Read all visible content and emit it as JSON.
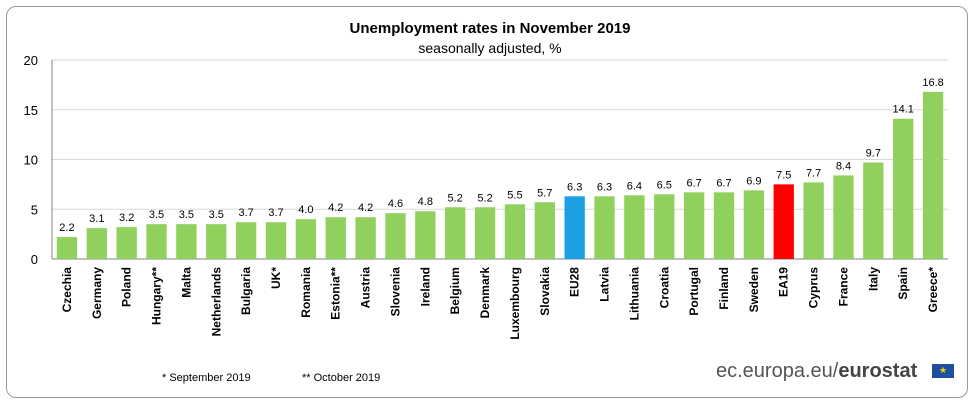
{
  "chart_data": {
    "type": "bar",
    "title": "Unemployment rates in November 2019",
    "subtitle": "seasonally adjusted, %",
    "xlabel": "",
    "ylabel": "",
    "ylim": [
      0,
      20
    ],
    "yticks": [
      "0",
      "5",
      "10",
      "15",
      "20"
    ],
    "categories": [
      "Czechia",
      "Germany",
      "Poland",
      "Hungary**",
      "Malta",
      "Netherlands",
      "Bulgaria",
      "UK*",
      "Romania",
      "Estonia**",
      "Austria",
      "Slovenia",
      "Ireland",
      "Belgium",
      "Denmark",
      "Luxembourg",
      "Slovakia",
      "EU28",
      "Latvia",
      "Lithuania",
      "Croatia",
      "Portugal",
      "Finland",
      "Sweden",
      "EA19",
      "Cyprus",
      "France",
      "Italy",
      "Spain",
      "Greece*"
    ],
    "values": [
      2.2,
      3.1,
      3.2,
      3.5,
      3.5,
      3.5,
      3.7,
      3.7,
      4.0,
      4.2,
      4.2,
      4.6,
      4.8,
      5.2,
      5.2,
      5.5,
      5.7,
      6.3,
      6.3,
      6.4,
      6.5,
      6.7,
      6.7,
      6.9,
      7.5,
      7.7,
      8.4,
      9.7,
      14.1,
      16.8
    ],
    "value_labels": [
      "2.2",
      "3.1",
      "3.2",
      "3.5",
      "3.5",
      "3.5",
      "3.7",
      "3.7",
      "4.0",
      "4.2",
      "4.2",
      "4.6",
      "4.8",
      "5.2",
      "5.2",
      "5.5",
      "5.7",
      "6.3",
      "6.3",
      "6.4",
      "6.5",
      "6.7",
      "6.7",
      "6.9",
      "7.5",
      "7.7",
      "8.4",
      "9.7",
      "14.1",
      "16.8"
    ],
    "highlight": {
      "EU28": "#1ba1e2",
      "EA19": "#ff0000"
    },
    "default_color": "#8fd15c",
    "grid": true
  },
  "footnotes": {
    "note1": "*  September 2019",
    "note2": "** October 2019"
  },
  "branding": {
    "site": "ec.europa.eu/",
    "name": "eurostat",
    "flag_icon": "eu-flag-icon"
  },
  "colors": {
    "bar": "#8fd15c",
    "eu28": "#1ba1e2",
    "ea19": "#ff0000",
    "grid": "#d9d9d9",
    "flag": "#1f4fa0",
    "stars": "#ffd200"
  }
}
